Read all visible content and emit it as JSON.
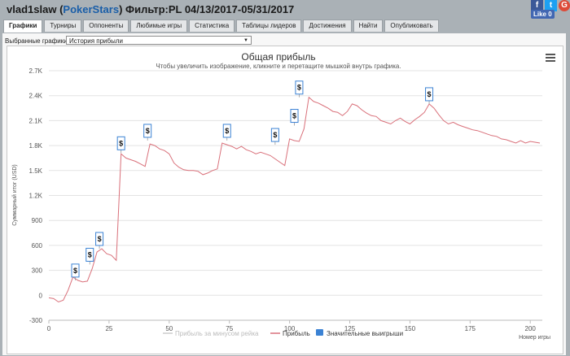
{
  "header": {
    "user": "vlad1slaw",
    "open_paren": "(",
    "room": "PokerStars",
    "filter": ") Фильтр:PL 04/13/2017-05/31/2017"
  },
  "social": {
    "fb_label": "f",
    "tw_label": "t",
    "gp_label": "G",
    "like_label": "Like 0",
    "colors": {
      "facebook": "#3b5998",
      "twitter": "#1da1f2",
      "google": "#dd4b39"
    }
  },
  "tabs": [
    "Графики",
    "Турниры",
    "Оппоненты",
    "Любимые игры",
    "Статистика",
    "Таблицы лидеров",
    "Достижения",
    "Найти",
    "Опубликовать"
  ],
  "selector": {
    "label": "Выбранные графики:",
    "value": "История прибыли"
  },
  "chart_data": {
    "type": "line",
    "title": "Общая прибыль",
    "subtitle": "Чтобы увеличить изображение, кликните и перетащите мышкой внутрь графика.",
    "xlabel": "Номер игры",
    "ylabel": "Суммарный итог (USD)",
    "xlim": [
      0,
      205
    ],
    "ylim": [
      -300,
      2700
    ],
    "x_ticks": [
      0,
      25,
      50,
      75,
      100,
      125,
      150,
      175,
      200
    ],
    "y_ticks": [
      -300,
      0,
      300,
      600,
      900,
      1200,
      1500,
      1800,
      2100,
      2400,
      2700
    ],
    "y_tick_labels": [
      "-300",
      "0",
      "300",
      "600",
      "900",
      "1.2K",
      "1.5K",
      "1.8K",
      "2.1K",
      "2.4K",
      "2.7K"
    ],
    "grid": "horizontal",
    "legend": "bottom",
    "series": [
      {
        "name": "Прибыль за минусом рейка",
        "color": "#cccccc",
        "values": []
      },
      {
        "name": "Прибыль",
        "color": "#d9707a",
        "x": [
          0,
          2,
          4,
          6,
          8,
          10,
          12,
          14,
          16,
          18,
          20,
          22,
          24,
          26,
          28,
          30,
          32,
          34,
          36,
          38,
          40,
          42,
          44,
          46,
          48,
          50,
          52,
          54,
          56,
          58,
          60,
          62,
          64,
          66,
          68,
          70,
          72,
          74,
          76,
          78,
          80,
          82,
          84,
          86,
          88,
          90,
          92,
          94,
          96,
          98,
          100,
          102,
          104,
          106,
          108,
          110,
          112,
          114,
          116,
          118,
          120,
          122,
          124,
          126,
          128,
          130,
          132,
          134,
          136,
          138,
          140,
          142,
          144,
          146,
          148,
          150,
          152,
          154,
          156,
          158,
          160,
          162,
          164,
          166,
          168,
          170,
          172,
          174,
          176,
          178,
          180,
          182,
          184,
          186,
          188,
          190,
          192,
          194,
          196,
          198,
          200,
          202,
          204
        ],
        "values": [
          -30,
          -40,
          -80,
          -60,
          60,
          220,
          180,
          160,
          170,
          320,
          520,
          560,
          500,
          480,
          420,
          1700,
          1650,
          1630,
          1610,
          1580,
          1550,
          1820,
          1800,
          1760,
          1740,
          1700,
          1590,
          1540,
          1510,
          1500,
          1500,
          1490,
          1450,
          1470,
          1500,
          1520,
          1830,
          1810,
          1790,
          1760,
          1790,
          1750,
          1730,
          1700,
          1720,
          1700,
          1680,
          1640,
          1600,
          1560,
          1880,
          1860,
          1850,
          2000,
          2380,
          2330,
          2310,
          2280,
          2250,
          2210,
          2200,
          2160,
          2210,
          2300,
          2280,
          2230,
          2190,
          2160,
          2150,
          2100,
          2080,
          2060,
          2100,
          2130,
          2090,
          2060,
          2110,
          2150,
          2200,
          2300,
          2250,
          2170,
          2100,
          2060,
          2080,
          2050,
          2030,
          2010,
          1990,
          1980,
          1960,
          1940,
          1920,
          1910,
          1880,
          1870,
          1850,
          1830,
          1860,
          1830,
          1850,
          1840,
          1830
        ]
      }
    ],
    "big_wins": {
      "name": "Значительные выигрыши",
      "color": "#3b82d4",
      "marker_label": "$",
      "points": [
        {
          "x": 11,
          "y": 180
        },
        {
          "x": 17,
          "y": 370
        },
        {
          "x": 21,
          "y": 560
        },
        {
          "x": 30,
          "y": 1710
        },
        {
          "x": 41,
          "y": 1860
        },
        {
          "x": 74,
          "y": 1860
        },
        {
          "x": 94,
          "y": 1810
        },
        {
          "x": 102,
          "y": 2040
        },
        {
          "x": 104,
          "y": 2380
        },
        {
          "x": 158,
          "y": 2300
        }
      ]
    }
  }
}
